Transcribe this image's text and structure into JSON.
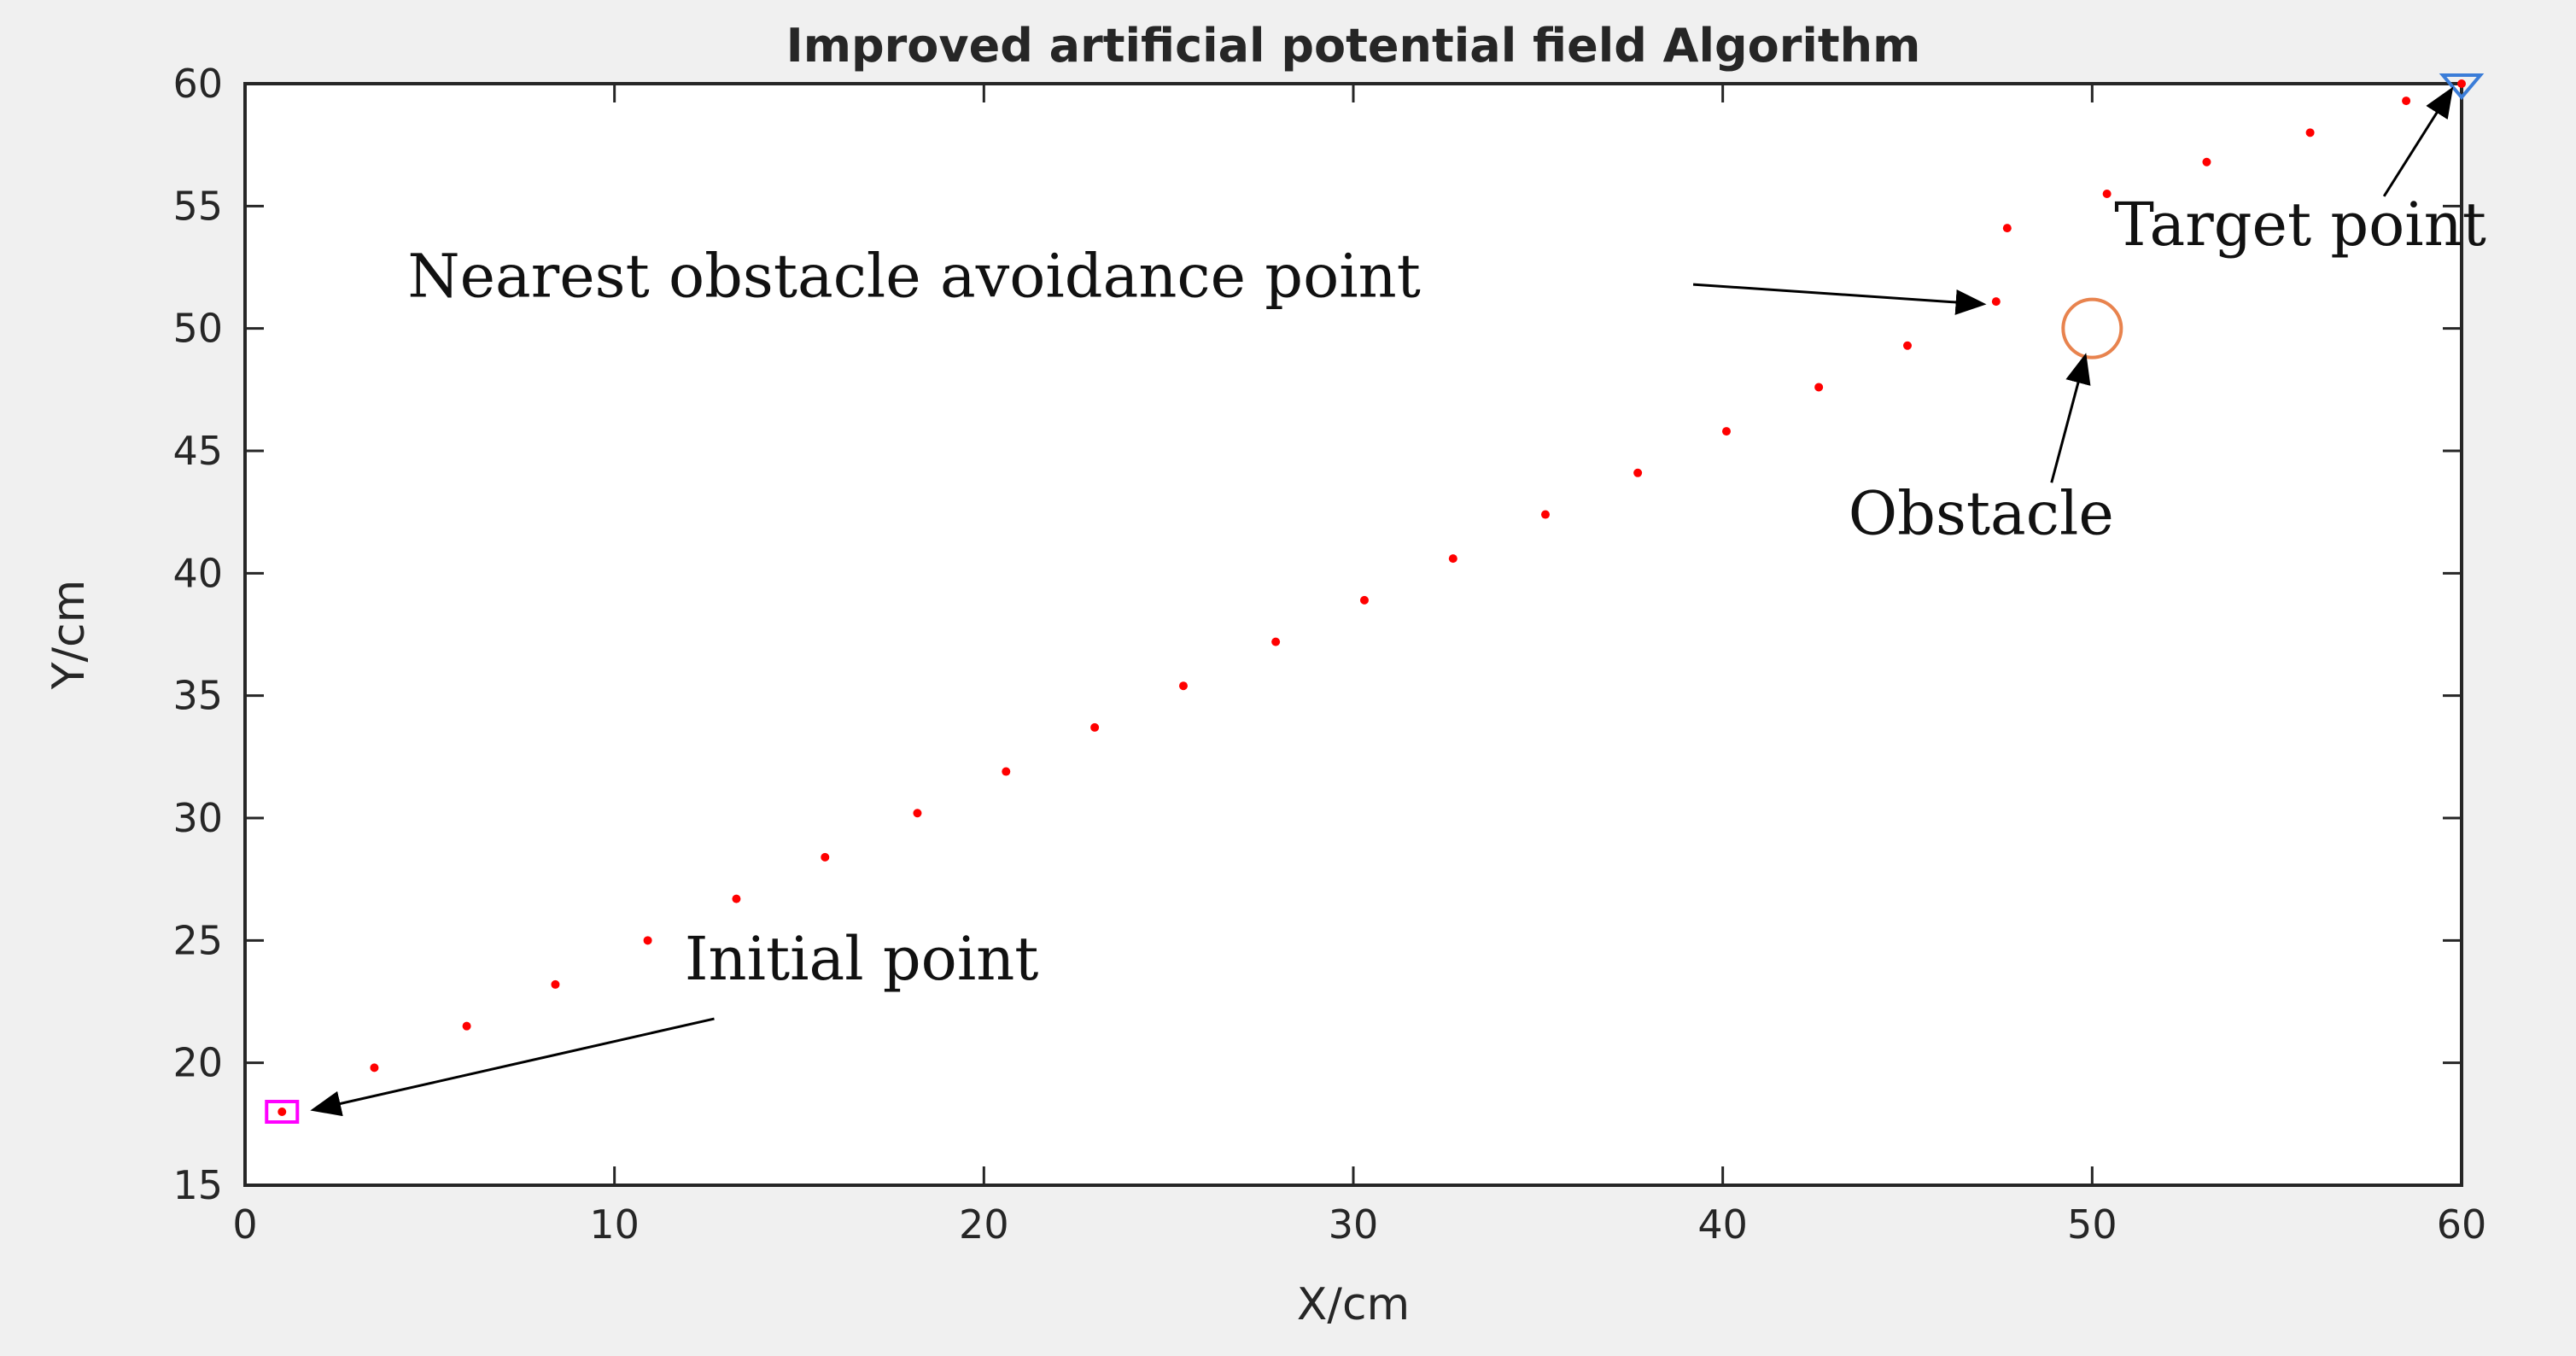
{
  "chart_data": {
    "type": "scatter",
    "title": "Improved artificial potential field Algorithm",
    "xlabel": "X/cm",
    "ylabel": "Y/cm",
    "xlim": [
      0,
      60
    ],
    "ylim": [
      15,
      60
    ],
    "xticks": [
      0,
      10,
      20,
      30,
      40,
      50,
      60
    ],
    "yticks": [
      15,
      20,
      25,
      30,
      35,
      40,
      45,
      50,
      55,
      60
    ],
    "grid": false,
    "path_color": "#ff0000",
    "path": {
      "x": [
        1,
        3.5,
        6,
        8.4,
        10.9,
        13.3,
        15.7,
        18.2,
        20.6,
        23.0,
        25.4,
        27.9,
        30.3,
        32.7,
        35.2,
        37.7,
        40.1,
        42.6,
        45.0,
        47.4,
        47.7,
        50.4,
        53.1,
        55.9,
        58.5,
        60
      ],
      "y": [
        18,
        19.8,
        21.5,
        23.2,
        25.0,
        26.7,
        28.4,
        30.2,
        31.9,
        33.7,
        35.4,
        37.2,
        38.9,
        40.6,
        42.4,
        44.1,
        45.8,
        47.6,
        49.3,
        51.1,
        54.1,
        55.5,
        56.8,
        58.0,
        59.3,
        60
      ]
    },
    "initial_point": {
      "x": 1,
      "y": 18,
      "marker": "square",
      "color": "#ff00ff"
    },
    "target_point": {
      "x": 60,
      "y": 60,
      "marker": "triangle-down",
      "color": "#3b7dd8"
    },
    "obstacle": {
      "x": 50,
      "y": 50,
      "marker": "circle",
      "color": "#e8834e"
    },
    "annotations": [
      {
        "id": "nearest",
        "text": "Nearest obstacle avoidance point",
        "text_x": 4.4,
        "text_y": 51.3,
        "arrow_from": [
          39.2,
          51.8
        ],
        "arrow_to": [
          47.0,
          51.0
        ]
      },
      {
        "id": "target",
        "text": "Target point",
        "text_x": 50.6,
        "text_y": 53.4,
        "arrow_from": [
          57.9,
          55.4
        ],
        "arrow_to": [
          59.7,
          59.7
        ]
      },
      {
        "id": "obstacle",
        "text": "Obstacle",
        "text_x": 43.4,
        "text_y": 41.6,
        "arrow_from": [
          48.9,
          43.7
        ],
        "arrow_to": [
          49.8,
          48.8
        ]
      },
      {
        "id": "initial",
        "text": "Initial point",
        "text_x": 11.9,
        "text_y": 23.4,
        "arrow_from": [
          12.7,
          21.8
        ],
        "arrow_to": [
          1.9,
          18.1
        ]
      }
    ]
  }
}
